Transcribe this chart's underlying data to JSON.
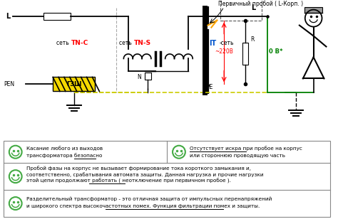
{
  "bg_color": "#ffffff",
  "title_annotation": "Первичный пробой ( L-Корп. )",
  "label_L_left": "L",
  "label_PEN": "PEN",
  "label_GZSh": "ГЗШ",
  "label_N": "N",
  "label_PE": "PE",
  "label_set_TNC": "сеть ",
  "label_TNC": "TN-C",
  "label_set_TNS": "сеть ",
  "label_TNS": "TN-S",
  "label_IT": "IT",
  "label_set_IT": "-сеть",
  "label_220V": "~220В",
  "label_0V": "0 В*",
  "label_L_right": "L",
  "label_R": "R",
  "color_red": "#ff0000",
  "color_green": "#008000",
  "color_black": "#000000",
  "color_gray": "#aaaaaa",
  "color_yellow": "#f5d800",
  "color_dark_yellow": "#cccc00",
  "smiley_color": "#44aa44",
  "table_border_color": "#888888",
  "row1_text1a": "Касание любого из выходов",
  "row1_text1b": "трансформатора безопасно",
  "row1_text2a": "Отсутствует искра при пробое на корпус",
  "row1_text2b": "или стороннюю проводящую часть",
  "row2_text1": "Пробой фазы на корпус не вызывает формирование тока короткого замыкания и,",
  "row2_text2": "соответственно, срабатывания автомата защиты. Данная нагрузка и прочие нагрузки",
  "row2_text3": "этой цепи продолжают работать ( неотключение при первичном пробое ).",
  "row3_text1": "Разделительный трансформатор - это отличная защита от импульсных перенапряжений",
  "row3_text2": "и широкого спектра высокочастотных помех. Функция фильтрации помех и защиты."
}
